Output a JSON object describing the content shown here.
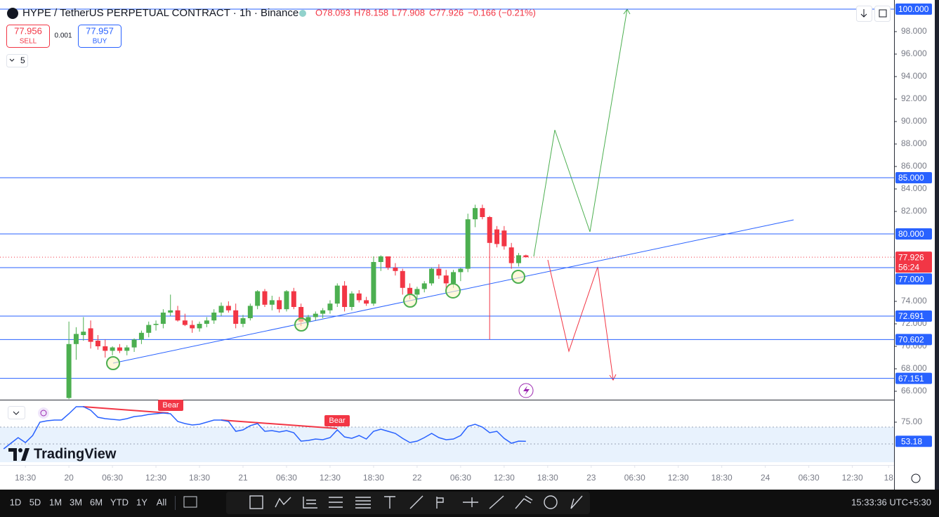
{
  "header": {
    "symbol": "HYPE / TetherUS PERPETUAL CONTRACT · 1h · Binance",
    "open": "O78.093",
    "high": "H78.158",
    "low": "L77.908",
    "close": "C77.926",
    "change": "−0.166 (−0.21%)"
  },
  "trade": {
    "sell_price": "77.956",
    "sell": "SELL",
    "qty": "0.001",
    "buy_price": "77.957",
    "buy": "BUY"
  },
  "indicators_count": "5",
  "logo": "TradingView",
  "ranges": [
    "1D",
    "5D",
    "1M",
    "3M",
    "6M",
    "YTD",
    "1Y",
    "All"
  ],
  "clock": "15:33:36 UTC+5:30",
  "chart_data": [
    {
      "type": "candlestick",
      "x": [
        0,
        1,
        2,
        3,
        4,
        5,
        6,
        7,
        8,
        9,
        10,
        11,
        12,
        13,
        14,
        15,
        16,
        17,
        18,
        19,
        20,
        21,
        22,
        23,
        24,
        25,
        26,
        27,
        28,
        29,
        30,
        31,
        32,
        33,
        34,
        35,
        36,
        37,
        38,
        39,
        40,
        41,
        42,
        43,
        44,
        45,
        46,
        47,
        48,
        49,
        50,
        51,
        52,
        53,
        54,
        55,
        56,
        57,
        58,
        59,
        60,
        61,
        62,
        63
      ],
      "open": [
        65.4,
        70.2,
        71.0,
        71.6,
        70.5,
        70.0,
        69.6,
        69.9,
        69.6,
        69.9,
        70.6,
        71.2,
        71.9,
        72.0,
        73.0,
        73.2,
        72.3,
        71.9,
        71.6,
        72.0,
        72.3,
        73.0,
        73.6,
        73.2,
        72.0,
        72.5,
        73.6,
        74.9,
        73.7,
        74.1,
        73.3,
        74.9,
        73.5,
        72.2,
        72.6,
        72.9,
        73.2,
        73.8,
        75.4,
        73.5,
        74.7,
        74.1,
        73.8,
        77.5,
        78.0,
        77.0,
        76.7,
        75.2,
        74.6,
        75.1,
        75.6,
        76.9,
        76.3,
        75.6,
        76.6,
        76.9,
        81.3,
        82.3,
        81.5,
        80.4,
        80.3,
        78.8,
        77.4,
        78.093
      ],
      "high": [
        72.2,
        71.7,
        72.6,
        72.3,
        71.0,
        70.6,
        70.0,
        70.2,
        70.1,
        70.7,
        71.4,
        72.2,
        72.3,
        73.3,
        74.6,
        73.6,
        72.9,
        72.3,
        72.2,
        72.6,
        73.3,
        73.9,
        74.0,
        73.8,
        72.8,
        73.8,
        75.0,
        75.1,
        74.5,
        74.4,
        75.0,
        75.2,
        73.8,
        72.8,
        73.1,
        73.4,
        74.1,
        75.6,
        75.8,
        74.9,
        75.0,
        74.4,
        78.0,
        78.1,
        78.0,
        77.4,
        76.9,
        75.6,
        75.3,
        75.8,
        77.0,
        77.3,
        76.8,
        76.8,
        77.0,
        81.8,
        82.6,
        82.6,
        81.6,
        80.7,
        80.7,
        79.2,
        78.3,
        78.158
      ],
      "low": [
        65.3,
        68.8,
        70.5,
        69.8,
        69.7,
        69.0,
        69.2,
        69.4,
        69.2,
        69.5,
        70.2,
        70.8,
        71.4,
        71.6,
        72.7,
        72.2,
        71.8,
        71.2,
        71.3,
        71.7,
        72.0,
        72.7,
        73.0,
        71.6,
        71.7,
        72.3,
        73.3,
        73.5,
        73.2,
        73.0,
        73.1,
        73.3,
        71.8,
        71.9,
        72.3,
        72.5,
        72.9,
        73.5,
        73.1,
        73.2,
        73.9,
        73.6,
        73.6,
        76.7,
        76.8,
        76.3,
        74.6,
        74.2,
        74.2,
        74.8,
        75.4,
        76.0,
        75.2,
        75.2,
        75.8,
        76.6,
        80.6,
        81.3,
        70.6,
        78.8,
        78.6,
        76.9,
        77.1,
        77.908
      ],
      "close": [
        70.2,
        71.1,
        71.3,
        70.4,
        70.0,
        69.6,
        69.9,
        69.6,
        69.9,
        70.6,
        71.2,
        71.9,
        72.0,
        73.0,
        73.2,
        72.3,
        71.9,
        71.6,
        72.0,
        72.3,
        73.0,
        73.6,
        73.2,
        72.0,
        72.5,
        73.6,
        74.9,
        73.7,
        74.1,
        73.3,
        74.9,
        73.5,
        72.2,
        72.6,
        72.9,
        73.2,
        73.8,
        75.4,
        73.5,
        74.7,
        74.1,
        73.8,
        77.5,
        78.0,
        77.0,
        76.7,
        75.2,
        74.6,
        75.1,
        75.6,
        76.9,
        76.3,
        75.6,
        76.6,
        76.9,
        81.3,
        82.3,
        81.5,
        79.2,
        79.1,
        78.9,
        77.4,
        78.1,
        77.926
      ],
      "up_color": "#4caf50",
      "down_color": "#f23645",
      "xlim": [
        -9.5,
        113.75
      ],
      "xticks": [
        {
          "value": -6,
          "label": "18:30"
        },
        {
          "value": 0,
          "label": "20"
        },
        {
          "value": 6,
          "label": "06:30"
        },
        {
          "value": 12,
          "label": "12:30"
        },
        {
          "value": 18,
          "label": "18:30"
        },
        {
          "value": 24,
          "label": "21"
        },
        {
          "value": 30,
          "label": "06:30"
        },
        {
          "value": 36,
          "label": "12:30"
        },
        {
          "value": 42,
          "label": "18:30"
        },
        {
          "value": 48,
          "label": "22"
        },
        {
          "value": 54,
          "label": "06:30"
        },
        {
          "value": 60,
          "label": "12:30"
        },
        {
          "value": 66,
          "label": "18:30"
        },
        {
          "value": 72,
          "label": "23"
        },
        {
          "value": 78,
          "label": "06:30"
        },
        {
          "value": 84,
          "label": "12:30"
        },
        {
          "value": 90,
          "label": "18:30"
        },
        {
          "value": 96,
          "label": "24"
        },
        {
          "value": 102,
          "label": "06:30"
        },
        {
          "value": 108,
          "label": "12:30"
        },
        {
          "value": 113,
          "label": "18"
        }
      ],
      "ylim": [
        65.25,
        100.5
      ],
      "yticks": [
        {
          "value": 66,
          "label": "66.000"
        },
        {
          "value": 68,
          "label": "68.000"
        },
        {
          "value": 70,
          "label": "70.000"
        },
        {
          "value": 72,
          "label": "72.000"
        },
        {
          "value": 74,
          "label": "74.000"
        },
        {
          "value": 82,
          "label": "82.000"
        },
        {
          "value": 84,
          "label": "84.000"
        },
        {
          "value": 86,
          "label": "86.000"
        },
        {
          "value": 88,
          "label": "88.000"
        },
        {
          "value": 90,
          "label": "90.000"
        },
        {
          "value": 92,
          "label": "92.000"
        },
        {
          "value": 94,
          "label": "94.000"
        },
        {
          "value": 96,
          "label": "96.000"
        },
        {
          "value": 98,
          "label": "98.000"
        }
      ],
      "levels": [
        {
          "value": 100,
          "label": "100.000"
        },
        {
          "value": 85,
          "label": "85.000"
        },
        {
          "value": 80,
          "label": "80.000"
        },
        {
          "value": 77,
          "label": "77.000"
        },
        {
          "value": 72.691,
          "label": "72.691"
        },
        {
          "value": 70.602,
          "label": "70.602"
        },
        {
          "value": 67.151,
          "label": "67.151"
        }
      ],
      "level_color": "#2962ff",
      "last_price": 77.926,
      "countdown": "56:24"
    },
    {
      "type": "line",
      "x": [
        -9,
        -8,
        -7,
        -6,
        -5,
        -4,
        -3,
        -2,
        -1,
        0,
        1,
        2,
        3,
        4,
        5,
        6,
        7,
        8,
        9,
        10,
        11,
        12,
        13,
        14,
        15,
        16,
        17,
        18,
        19,
        20,
        21,
        22,
        23,
        24,
        25,
        26,
        27,
        28,
        29,
        30,
        31,
        32,
        33,
        34,
        35,
        36,
        37,
        38,
        39,
        40,
        41,
        42,
        43,
        44,
        45,
        46,
        47,
        48,
        49,
        50,
        51,
        52,
        53,
        54,
        55,
        56,
        57,
        58,
        59,
        60,
        61,
        62,
        63
      ],
      "series": [
        {
          "color": "#2962ff",
          "values": [
            44.6,
            51.0,
            57.4,
            51.8,
            59.8,
            75.0,
            76.6,
            77.4,
            77.4,
            84.6,
            92.6,
            92.6,
            88.6,
            80.6,
            79.0,
            78.2,
            77.4,
            79.0,
            81.4,
            82.2,
            83.8,
            84.6,
            85.4,
            84.6,
            75.8,
            73.4,
            71.8,
            72.6,
            75.0,
            77.4,
            77.4,
            75.8,
            64.6,
            66.2,
            71.0,
            73.4,
            64.6,
            65.4,
            63.8,
            65.4,
            63.0,
            53.4,
            54.2,
            55.8,
            55.0,
            57.4,
            66.2,
            58.2,
            56.6,
            59.8,
            55.8,
            64.6,
            67.0,
            64.6,
            62.2,
            56.6,
            51.8,
            53.4,
            57.4,
            62.2,
            57.4,
            55.0,
            55.8,
            59.8,
            70.2,
            72.6,
            69.4,
            63.0,
            64.6,
            56.6,
            51.0,
            53.4,
            53.18
          ]
        }
      ],
      "xlim": [
        -9.5,
        113.75
      ],
      "ylim": [
        27.8,
        99.8
      ],
      "yticks": [
        {
          "value": 75,
          "label": "75.00"
        }
      ]
    }
  ]
}
